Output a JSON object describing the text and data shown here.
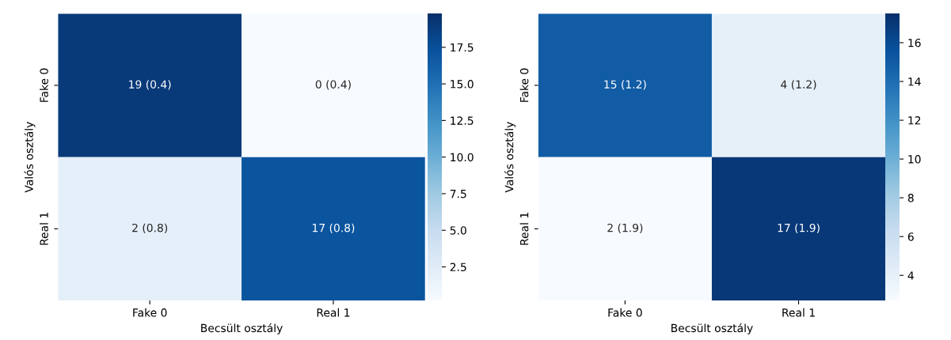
{
  "chart_data": [
    {
      "type": "heatmap",
      "xlabel": "Becsült osztály",
      "ylabel": "Valós osztály",
      "categories": [
        "Fake 0",
        "Real 1"
      ],
      "y_categories": [
        "Fake 0",
        "Real 1"
      ],
      "cells": [
        [
          19,
          0
        ],
        [
          2,
          17
        ]
      ],
      "cell_labels": [
        [
          "19 (0.4)",
          "0 (0.4)"
        ],
        [
          "2 (0.8)",
          "17 (0.8)"
        ]
      ],
      "clim": [
        0.2,
        19.8
      ],
      "cticks": [
        2.5,
        {
          "value": 5,
          "label": "5.0"
        },
        7.5,
        {
          "value": 10,
          "label": "10.0"
        },
        12.5,
        {
          "value": 15,
          "label": "15.0"
        },
        17.5
      ]
    },
    {
      "type": "heatmap",
      "xlabel": "Becsült osztály",
      "ylabel": "Valós osztály",
      "categories": [
        "Fake 0",
        "Real 1"
      ],
      "y_categories": [
        "Fake 0",
        "Real 1"
      ],
      "cells": [
        [
          15,
          4
        ],
        [
          2,
          17
        ]
      ],
      "cell_labels": [
        [
          "15 (1.2)",
          "4 (1.2)"
        ],
        [
          "2 (1.9)",
          "17 (1.9)"
        ]
      ],
      "clim": [
        2.7,
        17.5
      ],
      "cticks": [
        4,
        6,
        8,
        10,
        12,
        14,
        16
      ]
    }
  ]
}
